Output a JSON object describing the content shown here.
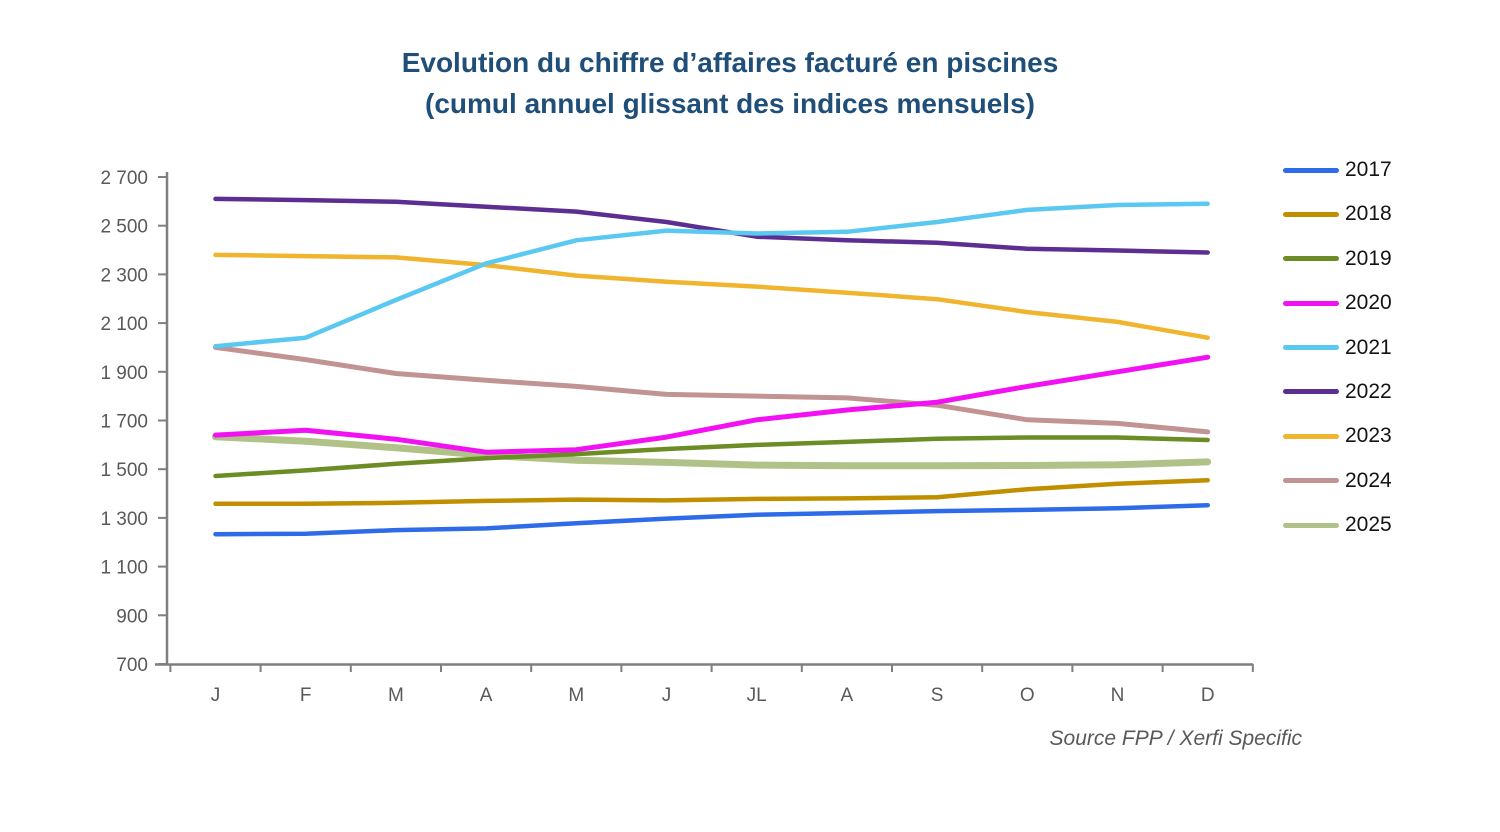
{
  "chart_data": {
    "type": "line",
    "title_lines": [
      "Evolution du chiffre d’affaires facturé en piscines",
      "(cumul annuel glissant des indices mensuels)"
    ],
    "source": "Source FPP / Xerfi Specific",
    "categories": [
      "J",
      "F",
      "M",
      "A",
      "M",
      "J",
      "JL",
      "A",
      "S",
      "O",
      "N",
      "D"
    ],
    "xlabel": "",
    "ylabel": "",
    "y_axis": {
      "min": 700,
      "max": 2700,
      "step": 200,
      "tick_labels": [
        "2 700",
        "2 500",
        "2 300",
        "2 100",
        "1 900",
        "1 700",
        "1 500",
        "1 300",
        "1 100",
        "900",
        "700"
      ]
    },
    "grid": false,
    "legend_position": "right",
    "series": [
      {
        "name": "2017",
        "color": "#2E6BE8",
        "values": [
          1233,
          1235,
          1250,
          1257,
          1278,
          1297,
          1313,
          1320,
          1328,
          1333,
          1340,
          1352
        ]
      },
      {
        "name": "2018",
        "color": "#BF8F00",
        "values": [
          1358,
          1358,
          1362,
          1370,
          1375,
          1372,
          1378,
          1380,
          1385,
          1418,
          1440,
          1455
        ]
      },
      {
        "name": "2019",
        "color": "#6C8C26",
        "values": [
          1472,
          1495,
          1522,
          1545,
          1562,
          1583,
          1600,
          1612,
          1625,
          1630,
          1630,
          1620
        ]
      },
      {
        "name": "2020",
        "color": "#F211F2",
        "values": [
          1640,
          1660,
          1623,
          1570,
          1580,
          1632,
          1703,
          1743,
          1775,
          1840,
          1900,
          1960
        ]
      },
      {
        "name": "2021",
        "color": "#5BC8F2",
        "values": [
          2005,
          2040,
          2195,
          2345,
          2440,
          2480,
          2468,
          2475,
          2515,
          2565,
          2585,
          2590
        ]
      },
      {
        "name": "2022",
        "color": "#5C2E91",
        "values": [
          2610,
          2605,
          2598,
          2578,
          2558,
          2515,
          2455,
          2440,
          2430,
          2405,
          2398,
          2390
        ]
      },
      {
        "name": "2023",
        "color": "#F0B42E",
        "values": [
          2380,
          2375,
          2370,
          2338,
          2295,
          2270,
          2250,
          2225,
          2198,
          2145,
          2105,
          2040
        ]
      },
      {
        "name": "2024",
        "color": "#C29393",
        "values": [
          2000,
          1950,
          1893,
          1865,
          1840,
          1807,
          1800,
          1793,
          1763,
          1703,
          1688,
          1653
        ]
      },
      {
        "name": "2025",
        "color": "#B0C287",
        "values": [
          1633,
          1615,
          1588,
          1557,
          1537,
          1528,
          1517,
          1514,
          1514,
          1515,
          1518,
          1530
        ]
      }
    ]
  }
}
